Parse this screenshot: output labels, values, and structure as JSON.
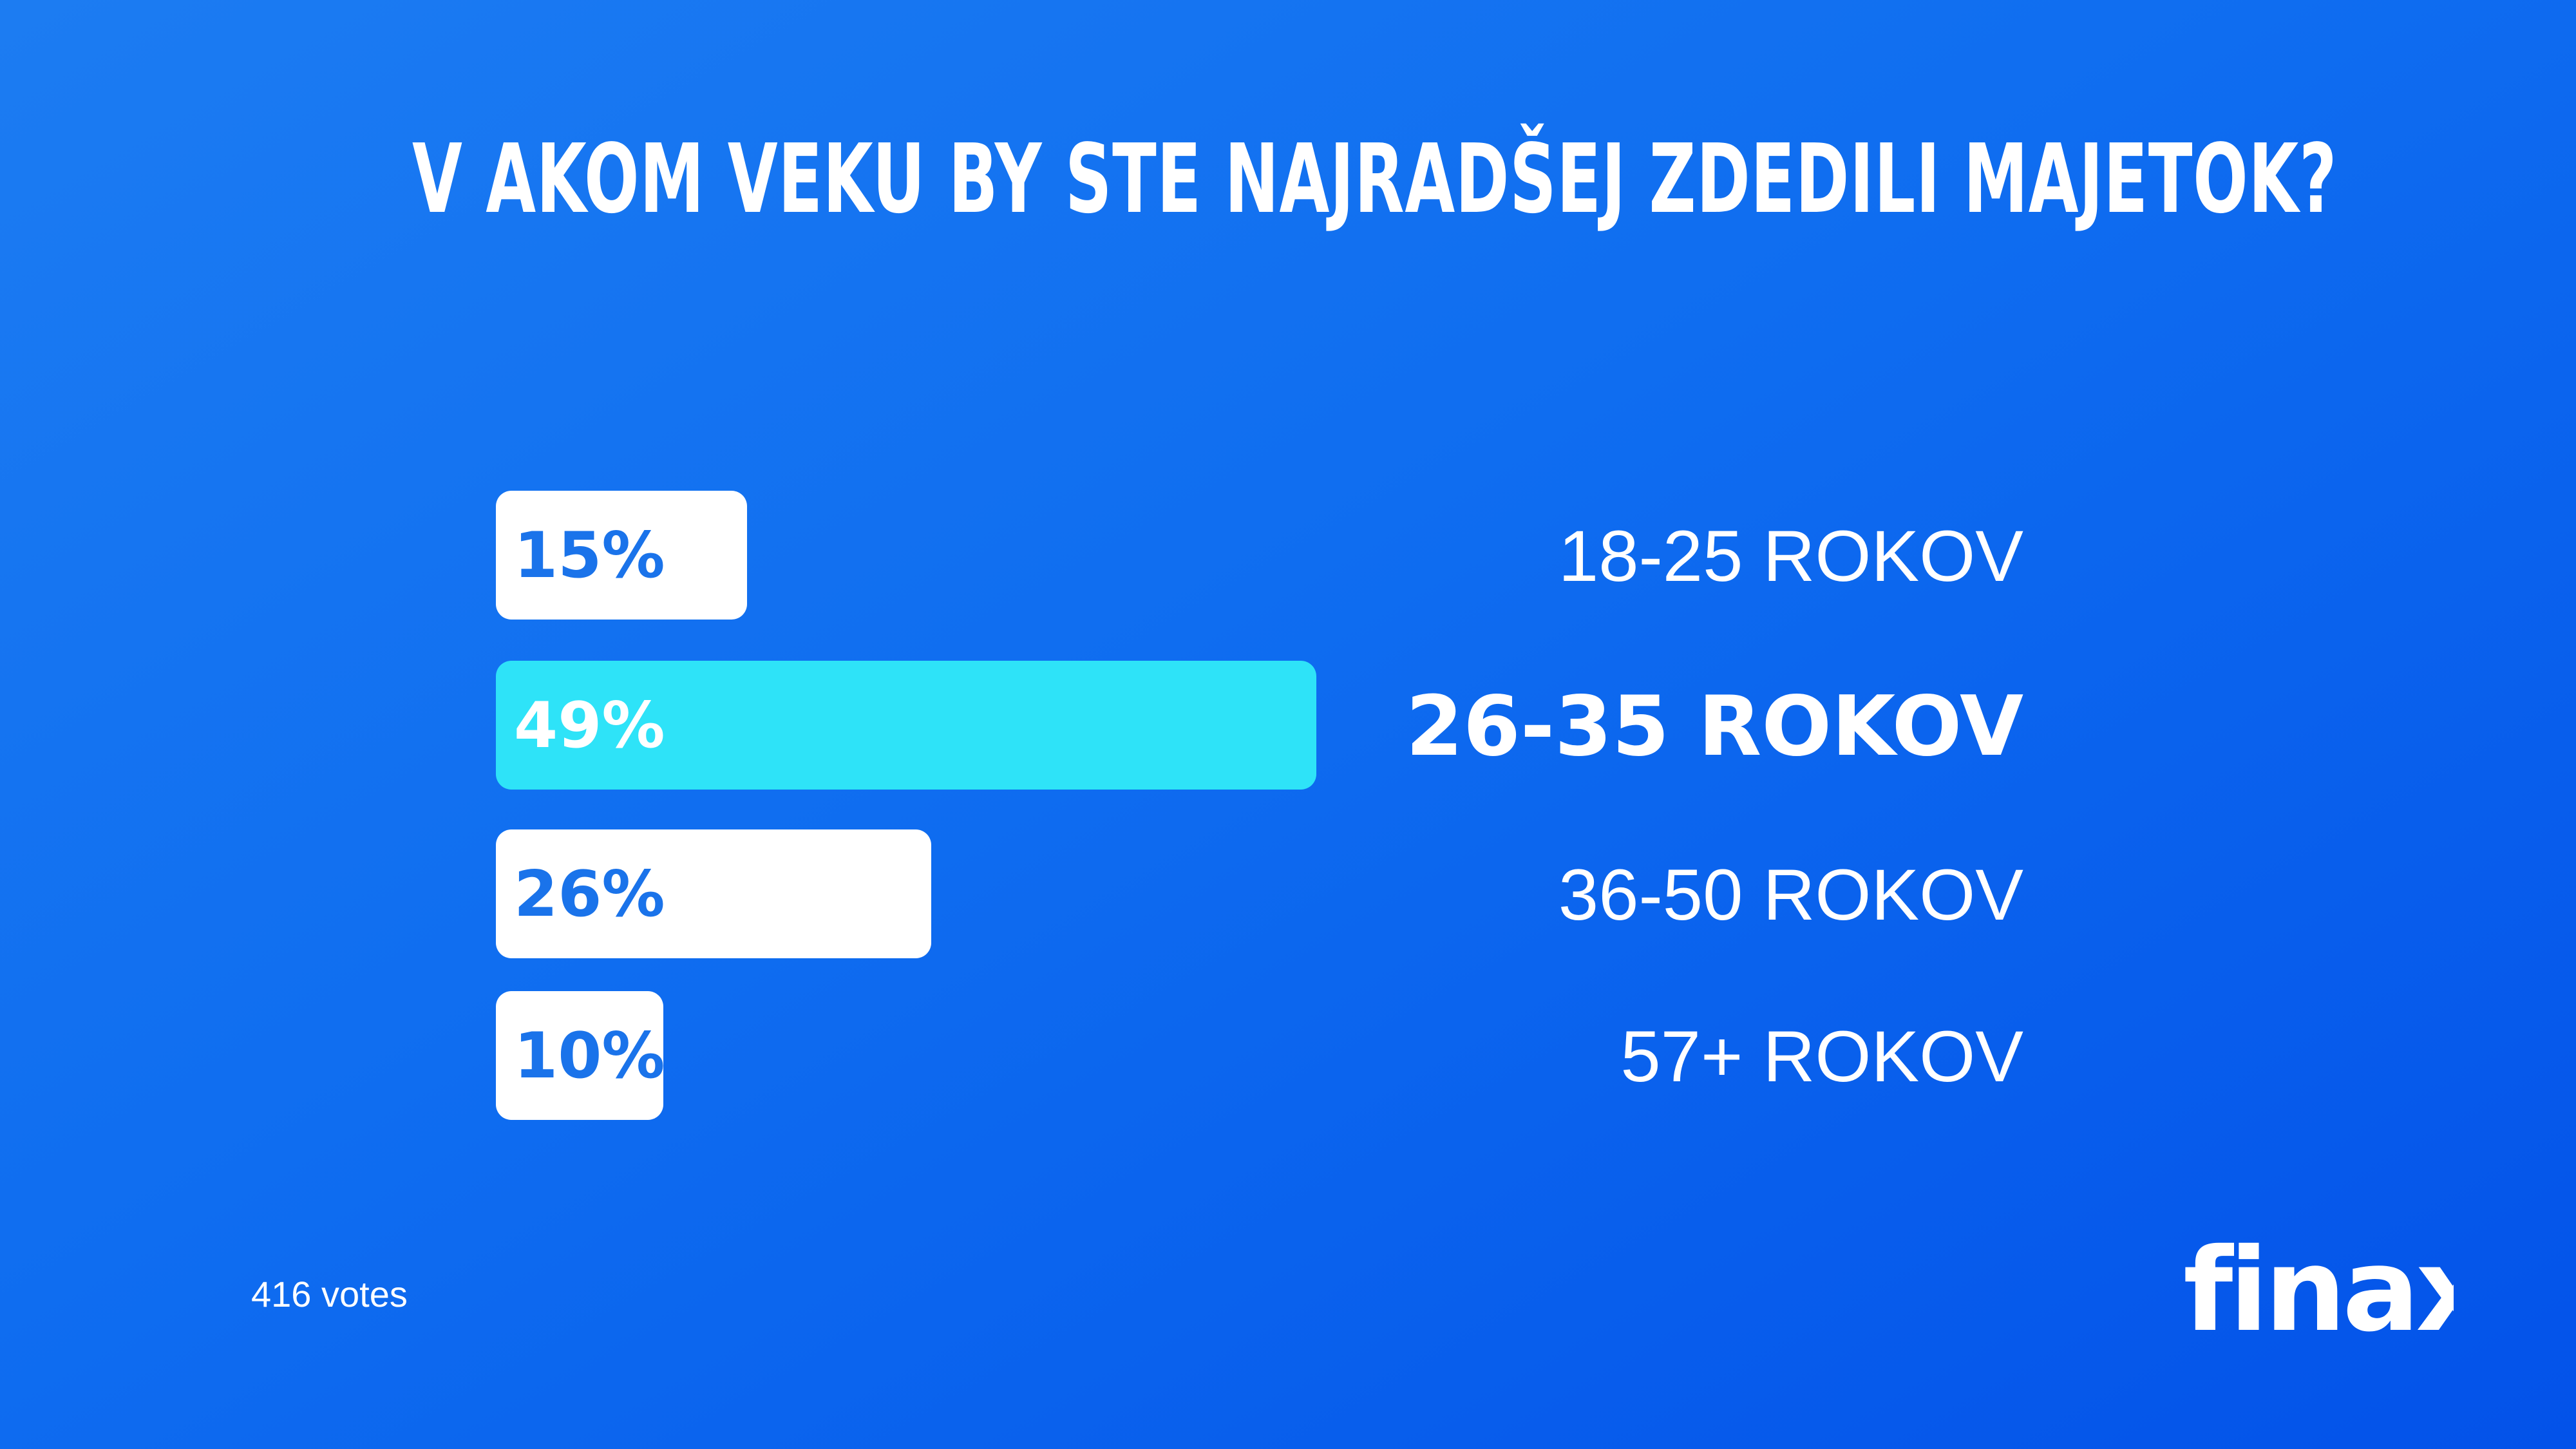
{
  "title": "V AKOM VEKU BY STE NAJRADŠEJ ZDEDILI MAJETOK?",
  "votes_text": "416 votes",
  "logo_text": "finax",
  "colors": {
    "background_start": "#1c7cf2",
    "background_end": "#0352e9",
    "bar": "#ffffff",
    "bar_highlight": "#2ee3f8",
    "percent_text": "#1a73ea"
  },
  "chart_data": {
    "type": "bar",
    "orientation": "horizontal",
    "title": "V AKOM VEKU BY STE NAJRADŠEJ ZDEDILI MAJETOK?",
    "categories": [
      "18-25 ROKOV",
      "26-35 ROKOV",
      "36-50 ROKOV",
      "57+ ROKOV"
    ],
    "values": [
      15,
      49,
      26,
      10
    ],
    "value_labels": [
      "15%",
      "49%",
      "26%",
      "10%"
    ],
    "highlight_index": 1,
    "unit": "%",
    "grid": false,
    "legend": "none"
  }
}
